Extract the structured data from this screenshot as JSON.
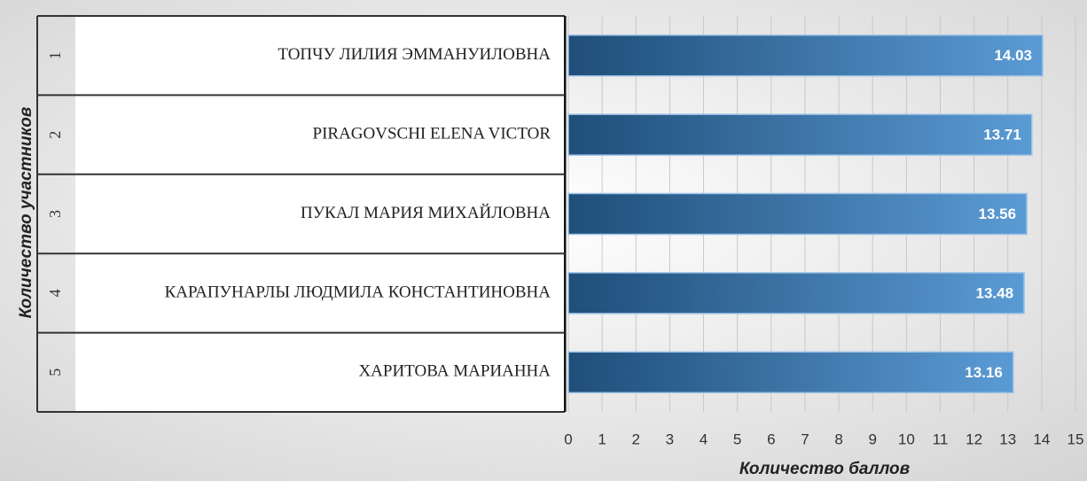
{
  "chart_data": {
    "type": "bar",
    "orientation": "horizontal",
    "ranks": [
      "1",
      "2",
      "3",
      "4",
      "5"
    ],
    "categories": [
      "ТОПЧУ ЛИЛИЯ ЭММАНУИЛОВНА",
      "PIRAGOVSCHI ELENA VICTOR",
      "ПУКАЛ МАРИЯ МИХАЙЛОВНА",
      "КАРАПУНАРЛЫ ЛЮДМИЛА КОНСТАНТИНОВНА",
      "ХАРИТОВА МАРИАННА"
    ],
    "values": [
      14.03,
      13.71,
      13.56,
      13.48,
      13.16
    ],
    "gradient": [
      "#1f4e79",
      "#5b9bd5"
    ],
    "xlim": [
      0,
      15
    ],
    "xticks": [
      0,
      1,
      2,
      3,
      4,
      5,
      6,
      7,
      8,
      9,
      10,
      11,
      12,
      13,
      14,
      15
    ],
    "grid": true,
    "x_label": "Количество баллов",
    "y_label": "Количество участников"
  }
}
